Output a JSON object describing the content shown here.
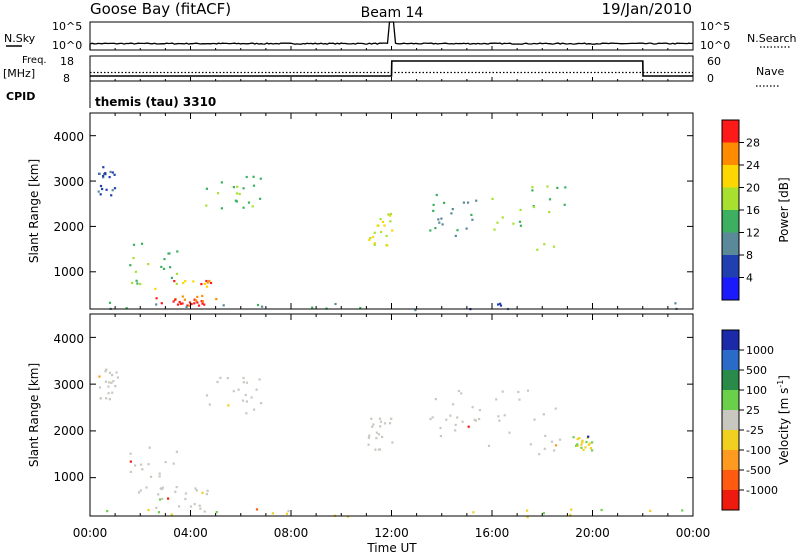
{
  "header": {
    "station": "Goose Bay (fitACF)",
    "beam": "Beam 14",
    "date": "19/Jan/2010"
  },
  "mini_panels": {
    "nsky_label": "N.Sky",
    "nsky_ticks": [
      "10^5",
      "10^0"
    ],
    "nsearch_label": "N.Search",
    "nsearch_ticks": [
      "10^5",
      "10^0"
    ],
    "freq_label": "Freq.",
    "freq_unit": "[MHz]",
    "freq_ticks": [
      "18",
      "8"
    ],
    "nave_label": "Nave",
    "nave_ticks": [
      "60",
      "0"
    ],
    "cpid_label": "CPID",
    "cpid_value": "themis (tau) 3310"
  },
  "axes": {
    "ylabel": "Slant Range [km]",
    "xlabel": "Time UT",
    "xticks": [
      "00:00",
      "04:00",
      "08:00",
      "12:00",
      "16:00",
      "20:00",
      "00:00"
    ],
    "yticks": [
      "1000",
      "2000",
      "3000",
      "4000"
    ]
  },
  "colorbars": {
    "power": {
      "label": "Power [dB]",
      "ticks": [
        "28",
        "24",
        "20",
        "16",
        "12",
        "8",
        "4"
      ],
      "colors": [
        "#ff1a1a",
        "#ff8c00",
        "#ffd700",
        "#a8e030",
        "#3cb060",
        "#5a8a9a",
        "#2040b0",
        "#1a1aff"
      ]
    },
    "velocity": {
      "label": "Velocity [m s",
      "label_sup": "-1",
      "label_end": "]",
      "ticks": [
        "1000",
        "500",
        "100",
        "25",
        "-25",
        "-100",
        "-500",
        "-1000"
      ],
      "colors": [
        "#1a2aa8",
        "#2a6ac8",
        "#2a8a4a",
        "#6ad04a",
        "#c8c8c0",
        "#f0d020",
        "#ff9a20",
        "#ff5a10",
        "#ee1a10"
      ]
    }
  },
  "chart_data": [
    {
      "type": "line",
      "title": "N.Sky / N.Search",
      "x": [
        "00:00",
        "04:00",
        "08:00",
        "12:00",
        "16:00",
        "20:00",
        "24:00"
      ],
      "series": [
        {
          "name": "N.Sky",
          "values": [
            10,
            14,
            12,
            100000,
            12,
            13,
            11
          ]
        },
        {
          "name": "N.Search",
          "values": [
            1,
            1,
            1,
            1,
            1,
            1,
            1
          ]
        }
      ],
      "ylim": [
        1,
        100000
      ],
      "scale": "log"
    },
    {
      "type": "line",
      "title": "Freq / Nave",
      "x": [
        "00:00",
        "12:00",
        "12:01",
        "22:00",
        "22:01",
        "24:00"
      ],
      "series": [
        {
          "name": "Freq.",
          "values": [
            10,
            10,
            16,
            16,
            10,
            10
          ]
        },
        {
          "name": "Nave",
          "values": [
            12,
            12,
            12,
            12,
            12,
            12
          ]
        }
      ],
      "ylim": [
        8,
        18
      ]
    },
    {
      "type": "heatmap",
      "title": "Power",
      "x_range_hours": [
        0,
        24
      ],
      "y_range_km": [
        180,
        4500
      ],
      "zlabel": "Power [dB]",
      "zlim": [
        0,
        30
      ],
      "regions": [
        {
          "t0": 0.3,
          "t1": 1.1,
          "r0": 2700,
          "r1": 3400,
          "dB": 6
        },
        {
          "t0": 1.5,
          "t1": 3.5,
          "r0": 700,
          "r1": 1700,
          "dB": 14
        },
        {
          "t0": 2.5,
          "t1": 5.0,
          "r0": 300,
          "r1": 900,
          "dB": 24
        },
        {
          "t0": 3.2,
          "t1": 4.8,
          "r0": 250,
          "r1": 500,
          "dB": 28
        },
        {
          "t0": 4.5,
          "t1": 6.8,
          "r0": 2400,
          "r1": 3200,
          "dB": 14
        },
        {
          "t0": 11.0,
          "t1": 12.0,
          "r0": 1600,
          "r1": 2300,
          "dB": 18
        },
        {
          "t0": 13.5,
          "t1": 15.5,
          "r0": 1800,
          "r1": 2900,
          "dB": 10
        },
        {
          "t0": 15.8,
          "t1": 19.0,
          "r0": 1500,
          "r1": 3000,
          "dB": 14
        },
        {
          "t0": 0.0,
          "t1": 24.0,
          "r0": 180,
          "r1": 350,
          "dB": 8
        }
      ]
    },
    {
      "type": "heatmap",
      "title": "Velocity",
      "x_range_hours": [
        0,
        24
      ],
      "y_range_km": [
        180,
        4500
      ],
      "zlabel": "Velocity [m s-1]",
      "zlim": [
        -1000,
        1000
      ],
      "regions": [
        {
          "t0": 0.3,
          "t1": 1.1,
          "r0": 2700,
          "r1": 3400,
          "v": 0
        },
        {
          "t0": 1.5,
          "t1": 3.5,
          "r0": 700,
          "r1": 1700,
          "v": 0
        },
        {
          "t0": 2.5,
          "t1": 5.0,
          "r0": 300,
          "r1": 900,
          "v": 0
        },
        {
          "t0": 4.5,
          "t1": 6.8,
          "r0": 2400,
          "r1": 3200,
          "v": 0
        },
        {
          "t0": 11.0,
          "t1": 12.0,
          "r0": 1600,
          "r1": 2300,
          "v": 0
        },
        {
          "t0": 13.5,
          "t1": 15.5,
          "r0": 1800,
          "r1": 2900,
          "v": 0
        },
        {
          "t0": 15.8,
          "t1": 19.0,
          "r0": 1500,
          "r1": 3000,
          "v": 0
        },
        {
          "t0": 19.2,
          "t1": 20.0,
          "r0": 1600,
          "r1": 1900,
          "v": 80
        },
        {
          "t0": 0.0,
          "t1": 24.0,
          "r0": 180,
          "r1": 350,
          "v": 60
        }
      ]
    }
  ]
}
